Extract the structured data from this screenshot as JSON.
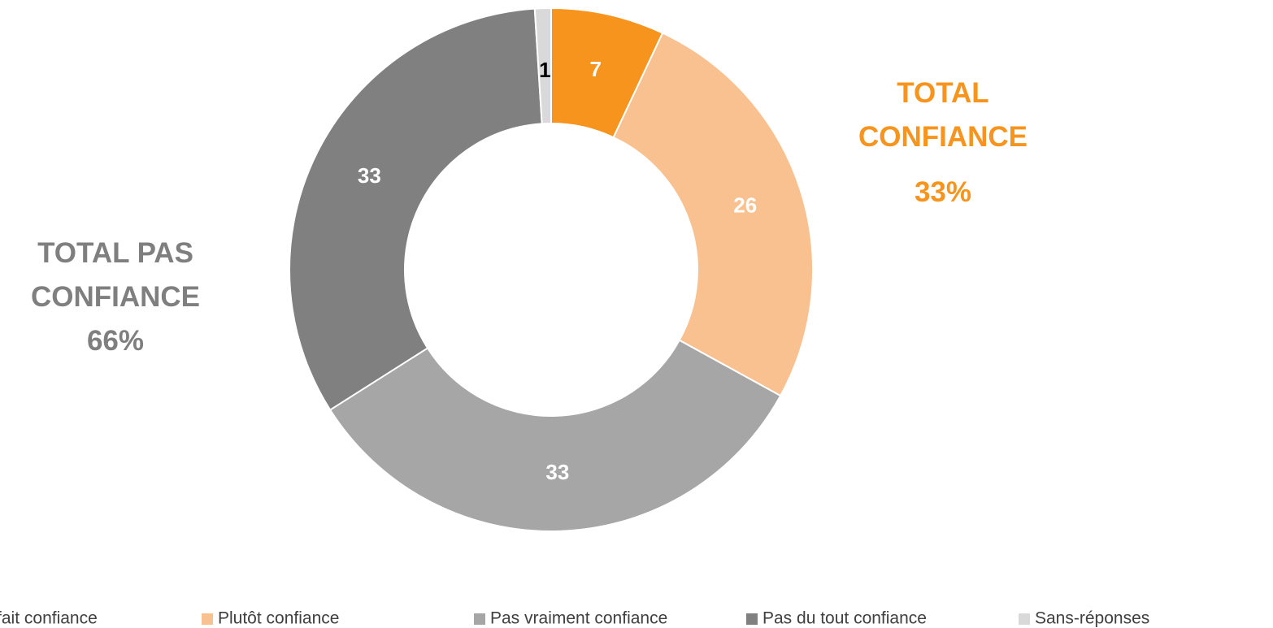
{
  "chart_data": {
    "type": "donut",
    "categories": [
      "Tout à fait confiance",
      "Plutôt confiance",
      "Pas vraiment confiance",
      "Pas du tout confiance",
      "Sans-réponses"
    ],
    "values": [
      7,
      26,
      33,
      33,
      1
    ],
    "colors": [
      "#f7941d",
      "#f9c090",
      "#a6a6a6",
      "#808080",
      "#d9d9d9"
    ],
    "label_colors": [
      "#ffffff",
      "#ffffff",
      "#ffffff",
      "#ffffff",
      "#000000"
    ],
    "legend": "bottom",
    "annotations": [
      {
        "text": "TOTAL CONFIANCE",
        "value_text": "33%",
        "color": "#f7941d"
      },
      {
        "text": "TOTAL PAS CONFIANCE",
        "value_text": "66%",
        "color": "#7f7f7f"
      }
    ]
  }
}
